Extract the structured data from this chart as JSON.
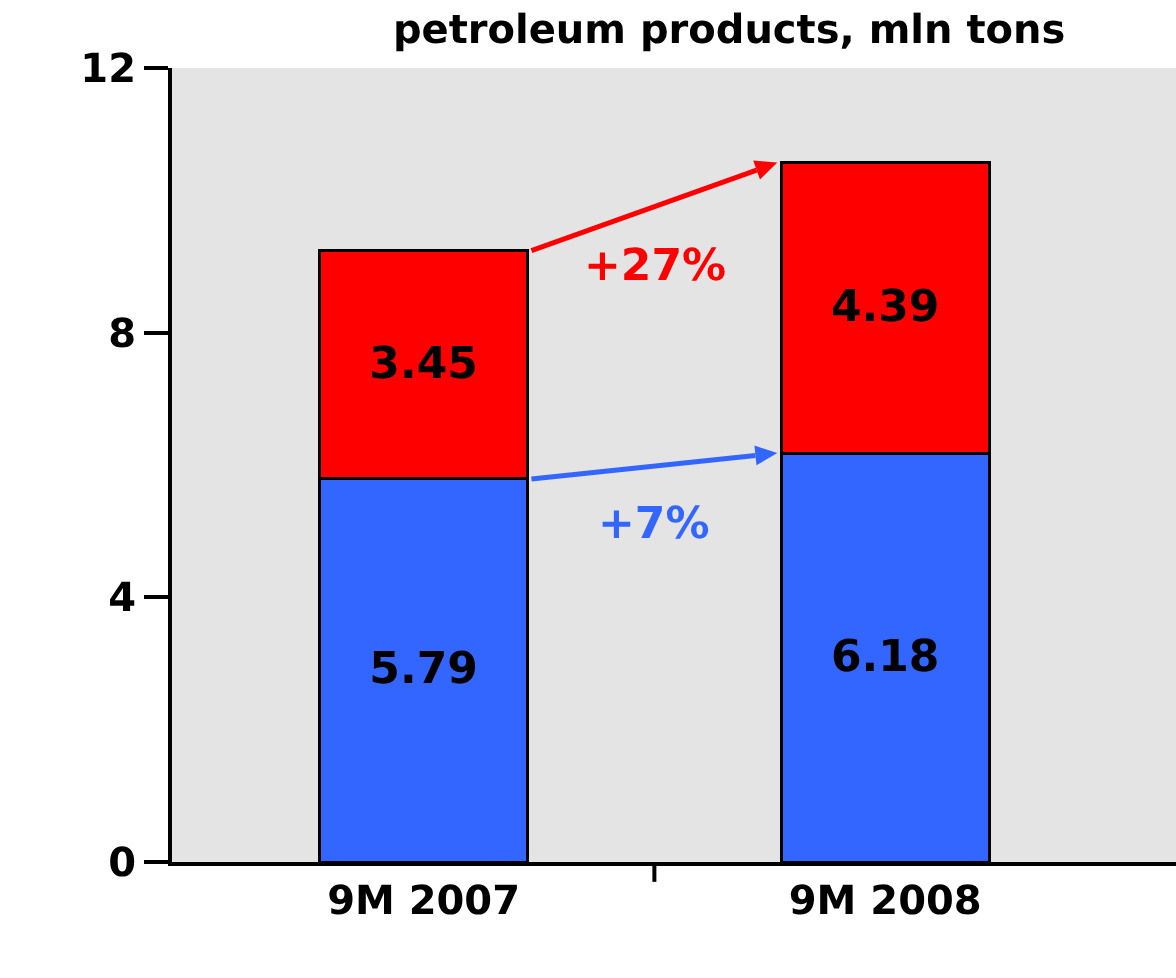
{
  "chart_data": {
    "type": "bar",
    "title": "petroleum products, mln tons",
    "categories": [
      "9M 2007",
      "9M 2008"
    ],
    "stacked": true,
    "series": [
      {
        "color": "#3366ff",
        "values": [
          5.79,
          6.18
        ]
      },
      {
        "color": "#ff0000",
        "values": [
          3.45,
          4.39
        ]
      }
    ],
    "data_labels": true,
    "ylim": [
      0,
      12
    ],
    "yticks": [
      0,
      4,
      8,
      12
    ],
    "annotations": [
      "+7%",
      "+27%"
    ]
  }
}
